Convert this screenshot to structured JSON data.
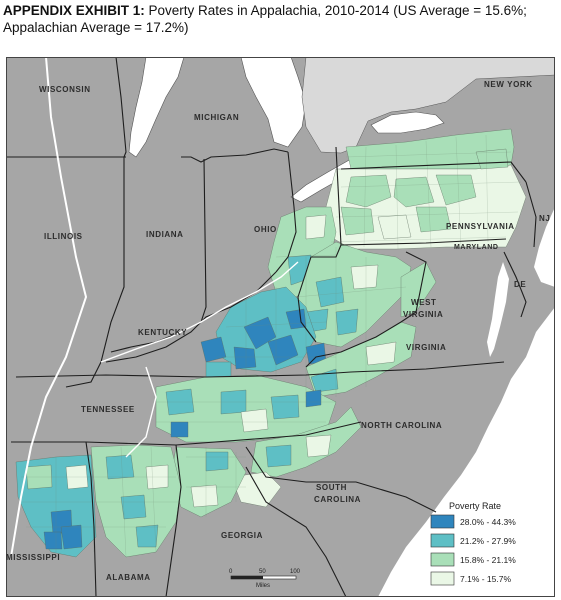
{
  "title": {
    "bold": "APPENDIX EXHIBIT 1:",
    "text": " Poverty Rates in Appalachia, 2010-2014 (US Average = 15.6%; Appalachian Average = 17.2%)"
  },
  "states": {
    "wisconsin": "WISCONSIN",
    "michigan": "MICHIGAN",
    "new_york": "NEW YORK",
    "illinois": "ILLINOIS",
    "indiana": "INDIANA",
    "ohio": "OHIO",
    "pennsylvania": "PENNSYLVANIA",
    "nj": "NJ",
    "maryland": "MARYLAND",
    "de": "DE",
    "west_virginia_1": "WEST",
    "west_virginia_2": "VIRGINIA",
    "kentucky": "KENTUCKY",
    "virginia": "VIRGINIA",
    "tennessee": "TENNESSEE",
    "north_carolina": "NORTH CAROLINA",
    "south_carolina_1": "SOUTH",
    "south_carolina_2": "CAROLINA",
    "georgia": "GEORGIA",
    "mississippi": "MISSISSIPPI",
    "alabama": "ALABAMA"
  },
  "legend": {
    "title": "Poverty Rate",
    "items": [
      {
        "label": "28.0% - 44.3%",
        "color": "#2f85bd"
      },
      {
        "label": "21.2% - 27.9%",
        "color": "#5ebfc5"
      },
      {
        "label": "15.8% - 21.1%",
        "color": "#a9dfb8"
      },
      {
        "label": "7.1% - 15.7%",
        "color": "#eaf7e6"
      }
    ]
  },
  "scale": {
    "ticks": [
      "0",
      "50",
      "100"
    ],
    "unit": "Miles"
  },
  "colors": {
    "background_land": "#a8a8a8",
    "water": "#ffffff",
    "outside": "#d6d6d6",
    "border": "#2a2a2a"
  }
}
